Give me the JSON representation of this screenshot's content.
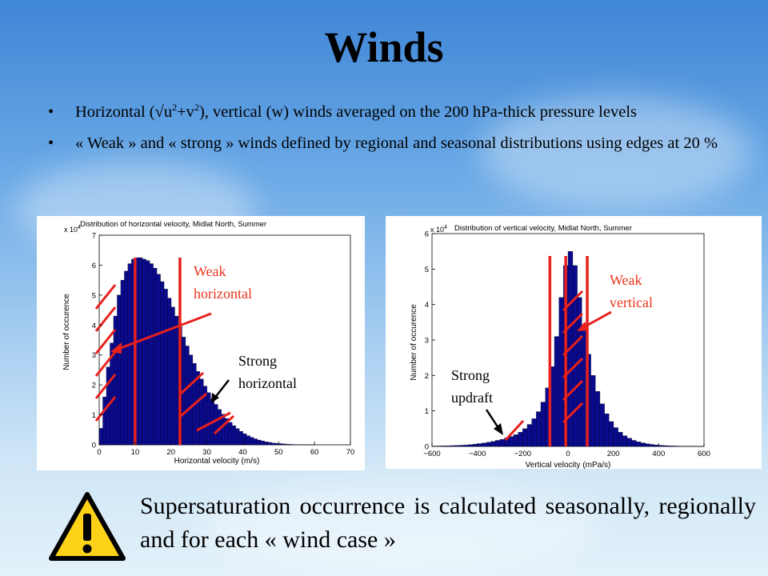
{
  "slide": {
    "title": "Winds",
    "bullets": [
      {
        "pre": "Horizontal (√u",
        "sup1": "2",
        "mid": "+v",
        "sup2": "2",
        "post": "), vertical (w) winds averaged on the 200 hPa-thick pressure levels"
      },
      {
        "text": "« Weak » and « strong » winds defined by regional and seasonal distributions using edges at 20 %"
      }
    ],
    "warning_text": "Supersaturation occurrence is calculated seasonally, regionally and for each « wind case »",
    "icons": [
      "bullet-dot",
      "warning-icon"
    ]
  },
  "colors": {
    "bar": "#0a0a8c",
    "marker": "#e8211c",
    "annotation": "#e8341c"
  },
  "chart_data": [
    {
      "type": "bar",
      "title": "Distribution of horizontal velocity, Midlat North, Summer",
      "xlabel": "Horizontal velocity (m/s)",
      "ylabel": "Number of occurence",
      "y_multiplier": "x 10",
      "y_exponent": "4",
      "xlim": [
        0,
        70
      ],
      "ylim": [
        0,
        7
      ],
      "x_ticks": [
        "0",
        "10",
        "20",
        "30",
        "40",
        "50",
        "60",
        "70"
      ],
      "y_ticks": [
        "0",
        "1",
        "2",
        "3",
        "4",
        "5",
        "6",
        "7"
      ],
      "x": [
        0.5,
        1.5,
        2.5,
        3.5,
        4.5,
        5.5,
        6.5,
        7.5,
        8.5,
        9.5,
        10.5,
        11.5,
        12.5,
        13.5,
        14.5,
        15.5,
        16.5,
        17.5,
        18.5,
        19.5,
        20.5,
        21.5,
        22.5,
        23.5,
        24.5,
        25.5,
        26.5,
        27.5,
        28.5,
        29.5,
        30.5,
        31.5,
        32.5,
        33.5,
        34.5,
        35.5,
        36.5,
        37.5,
        38.5,
        39.5,
        40.5,
        41.5,
        42.5,
        43.5,
        44.5,
        45.5,
        46.5,
        47.5,
        48.5,
        49.5,
        50.5,
        51.5,
        52.5,
        53.5,
        54.5,
        55.5,
        56.5,
        57.5,
        58.5,
        59.5
      ],
      "values": [
        0.55,
        1.6,
        2.6,
        3.4,
        4.3,
        5.0,
        5.5,
        5.8,
        6.05,
        6.2,
        6.25,
        6.25,
        6.2,
        6.15,
        6.05,
        5.9,
        5.7,
        5.45,
        5.2,
        4.9,
        4.6,
        4.3,
        3.95,
        3.6,
        3.3,
        3.0,
        2.72,
        2.45,
        2.2,
        1.96,
        1.74,
        1.53,
        1.35,
        1.18,
        1.02,
        0.88,
        0.75,
        0.64,
        0.54,
        0.45,
        0.37,
        0.3,
        0.25,
        0.2,
        0.16,
        0.13,
        0.1,
        0.08,
        0.06,
        0.05,
        0.04,
        0.03,
        0.02,
        0.015,
        0.01,
        0.008,
        0.006,
        0.004,
        0.003,
        0.002
      ],
      "thresholds": [
        10,
        22.5
      ],
      "annotations": {
        "weak_line1": "Weak",
        "weak_line2": "horizontal",
        "strong_line1": "Strong",
        "strong_line2": "horizontal"
      }
    },
    {
      "type": "bar",
      "title": "Distribution of vertical velocity, Midlat North, Summer",
      "xlabel": "Vertical velocity (mPa/s)",
      "ylabel": "Number of occurence",
      "y_multiplier": "x 10",
      "y_exponent": "4",
      "xlim": [
        -600,
        600
      ],
      "ylim": [
        0,
        6
      ],
      "x_ticks": [
        "−600",
        "−400",
        "−200",
        "0",
        "200",
        "400",
        "600"
      ],
      "y_ticks": [
        "0",
        "1",
        "2",
        "3",
        "4",
        "5",
        "6"
      ],
      "x": [
        -590,
        -570,
        -550,
        -530,
        -510,
        -490,
        -470,
        -450,
        -430,
        -410,
        -390,
        -370,
        -350,
        -330,
        -310,
        -290,
        -270,
        -250,
        -230,
        -210,
        -190,
        -170,
        -150,
        -130,
        -110,
        -90,
        -70,
        -50,
        -30,
        -10,
        10,
        30,
        50,
        70,
        90,
        110,
        130,
        150,
        170,
        190,
        210,
        230,
        250,
        270,
        290,
        310,
        330,
        350,
        370,
        390,
        410,
        430,
        450,
        470,
        490,
        510,
        530,
        550,
        570,
        590
      ],
      "values": [
        0.01,
        0.012,
        0.015,
        0.018,
        0.022,
        0.027,
        0.033,
        0.04,
        0.05,
        0.062,
        0.078,
        0.095,
        0.115,
        0.14,
        0.17,
        0.2,
        0.24,
        0.28,
        0.33,
        0.4,
        0.5,
        0.62,
        0.78,
        0.98,
        1.25,
        1.65,
        2.25,
        3.1,
        4.2,
        5.1,
        5.5,
        5.1,
        4.2,
        3.3,
        2.6,
        2.0,
        1.55,
        1.2,
        0.92,
        0.7,
        0.53,
        0.4,
        0.3,
        0.23,
        0.17,
        0.13,
        0.1,
        0.075,
        0.056,
        0.042,
        0.031,
        0.023,
        0.017,
        0.013,
        0.01,
        0.008,
        0.006,
        0.005,
        0.004,
        0.003
      ],
      "thresholds": [
        -80,
        -10,
        85
      ],
      "annotations": {
        "weak_line1": "Weak",
        "weak_line2": "vertical",
        "strong_line1": "Strong",
        "strong_line2": "updraft"
      }
    }
  ]
}
